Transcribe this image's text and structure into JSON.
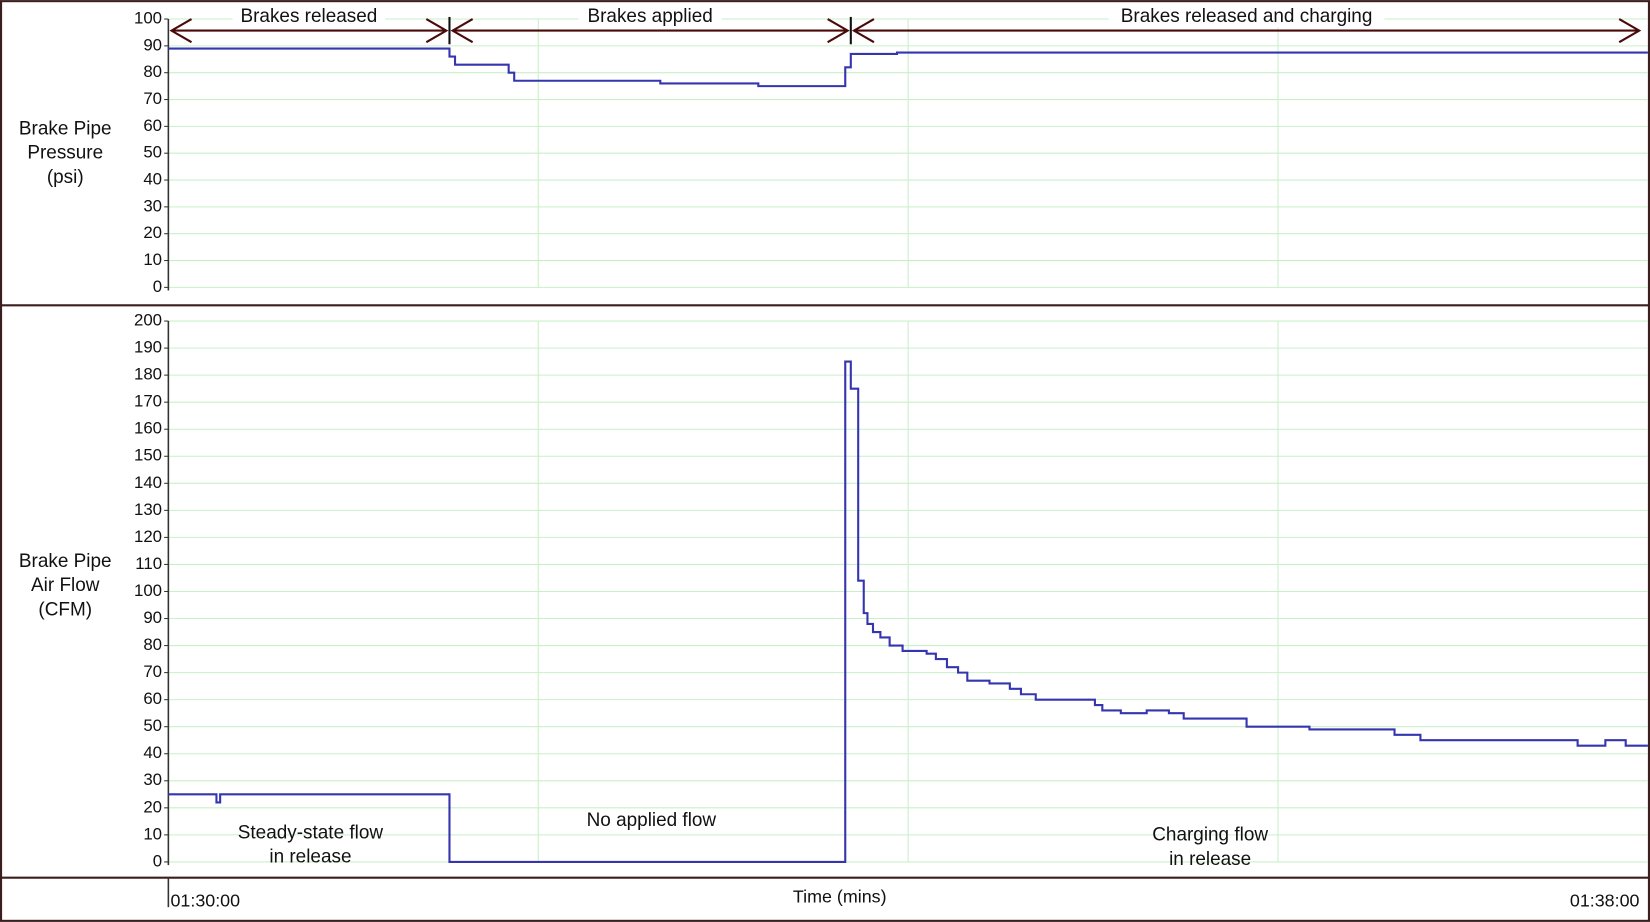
{
  "chart_data": [
    {
      "type": "line",
      "step": "post",
      "ylabel": [
        "Brake Pipe",
        "Pressure",
        "(psi)"
      ],
      "xlim": [
        90,
        98
      ],
      "xgrid": [
        92,
        94,
        96
      ],
      "ylim": [
        0,
        100
      ],
      "yticks": [
        0,
        10,
        20,
        30,
        40,
        50,
        60,
        70,
        80,
        90,
        100
      ],
      "grid": true,
      "series": [
        {
          "name": "Brake Pipe Pressure",
          "color": "#3535b0",
          "x": [
            90,
            91.52,
            91.55,
            91.84,
            91.87,
            92.66,
            93.19,
            93.66,
            93.69,
            93.94,
            98
          ],
          "values": [
            89,
            86,
            83,
            80,
            77,
            76,
            75,
            82,
            87,
            87.5,
            87.5
          ]
        }
      ],
      "phases": [
        {
          "text": "Brakes released",
          "x": [
            90,
            91.52
          ]
        },
        {
          "text": "Brakes applied",
          "x": [
            91.52,
            93.69
          ]
        },
        {
          "text": "Brakes released and charging",
          "x": [
            93.69,
            97.97
          ]
        }
      ]
    },
    {
      "type": "line",
      "step": "post",
      "ylabel": [
        "Brake Pipe",
        "Air Flow",
        "(CFM)"
      ],
      "xlabel": "Time (mins)",
      "xlim": [
        90,
        98
      ],
      "xgrid": [
        92,
        94,
        96
      ],
      "xticks": [
        {
          "value": 90,
          "label": "01:30:00"
        },
        {
          "value": 98,
          "label": "01:38:00"
        }
      ],
      "ylim": [
        0,
        200
      ],
      "yticks": [
        0,
        10,
        20,
        30,
        40,
        50,
        60,
        70,
        80,
        90,
        100,
        110,
        120,
        130,
        140,
        150,
        160,
        170,
        180,
        190,
        200
      ],
      "grid": true,
      "series": [
        {
          "name": "Brake Pipe Air Flow",
          "color": "#3535b0",
          "x": [
            90,
            90.26,
            90.28,
            91.52,
            93.66,
            93.69,
            93.73,
            93.76,
            93.78,
            93.81,
            93.85,
            93.9,
            93.97,
            94.1,
            94.15,
            94.21,
            94.27,
            94.32,
            94.44,
            94.55,
            94.61,
            94.69,
            95.01,
            95.05,
            95.15,
            95.29,
            95.41,
            95.49,
            95.69,
            95.83,
            96.09,
            96.17,
            96.63,
            96.77,
            97.28,
            97.62,
            97.77,
            97.88,
            98
          ],
          "values": [
            25,
            22,
            25,
            0,
            185,
            175,
            104,
            92,
            88,
            85,
            83,
            80,
            78,
            77,
            75,
            72,
            70,
            67,
            66,
            64,
            62,
            60,
            58,
            56,
            55,
            56,
            55,
            53,
            53,
            50,
            50,
            49,
            47,
            45,
            45,
            43,
            45,
            43,
            43
          ]
        }
      ],
      "annotations": [
        {
          "lines": [
            "Steady-state flow",
            "in release"
          ]
        },
        {
          "lines": [
            "No applied flow"
          ]
        },
        {
          "lines": [
            "Charging flow",
            "in release"
          ]
        }
      ]
    }
  ]
}
